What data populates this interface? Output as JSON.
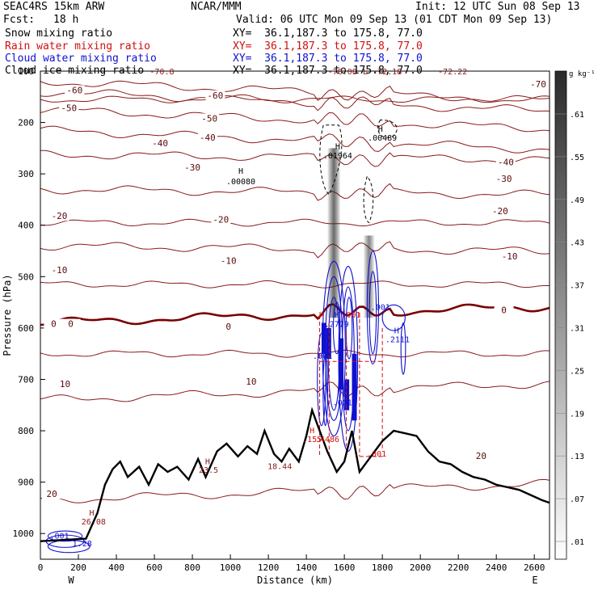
{
  "header": {
    "model": "SEAC4RS 15km ARW",
    "org": "NCAR/MMM",
    "init": "Init: 12 UTC Sun 08 Sep 13",
    "fcst_label": "Fcst:",
    "fcst_value": "18 h",
    "valid": "Valid: 06 UTC Mon 09 Sep 13 (01 CDT Mon 09 Sep 13)",
    "fields": [
      {
        "name": "Snow mixing ratio",
        "xy": "XY=  36.1,187.3 to 175.8, 77.0",
        "color": "#000000"
      },
      {
        "name": "Rain water mixing ratio",
        "xy": "XY=  36.1,187.3 to 175.8, 77.0",
        "color": "#d01010"
      },
      {
        "name": "Cloud water mixing ratio",
        "xy": "XY=  36.1,187.3 to 175.8, 77.0",
        "color": "#1010d0"
      },
      {
        "name": "Cloud ice mixing ratio",
        "xy": "XY=  36.1,187.3 to 175.8, 77.0",
        "color": "#000000"
      }
    ]
  },
  "chart_data": {
    "type": "cross-section contour",
    "xlabel": "Distance (km)",
    "ylabel": "Pressure (hPa)",
    "xlim": [
      0,
      2680
    ],
    "ylim": [
      1050,
      100
    ],
    "x_ticks": [
      "0",
      "200",
      "400",
      "600",
      "800",
      "1000",
      "1200",
      "1400",
      "1600",
      "1800",
      "2000",
      "2200",
      "2400",
      "2600"
    ],
    "y_ticks": [
      "100",
      "200",
      "300",
      "400",
      "500",
      "600",
      "700",
      "800",
      "900",
      "1000"
    ],
    "endpoint_labels": {
      "left": "W",
      "right": "E"
    },
    "colorbar": {
      "unit": "g kg⁻¹",
      "labels": [
        ".61",
        ".55",
        ".49",
        ".43",
        ".37",
        ".31",
        ".25",
        ".19",
        ".13",
        ".07",
        ".01"
      ]
    },
    "temperature_contours_C": {
      "color": "#8b1a1a",
      "zero_isotherm_color": "#7a0000",
      "levels": [
        -70,
        -60,
        -50,
        -40,
        -30,
        -20,
        -10,
        0,
        10,
        20
      ],
      "approx_pressure_hPa_at_x0": {
        "-70": 120,
        "-60": 140,
        "-50": 175,
        "-40": 215,
        "-30": 262,
        "-20": 330,
        "-10": 440,
        "0": 590,
        "10": 740,
        "20": 935
      },
      "labels": [
        {
          "text": "-70",
          "x": 2620,
          "p": 128
        },
        {
          "text": "-60",
          "x": 180,
          "p": 140
        },
        {
          "text": "-60",
          "x": 920,
          "p": 150
        },
        {
          "text": "-50",
          "x": 150,
          "p": 175
        },
        {
          "text": "-50",
          "x": 890,
          "p": 195
        },
        {
          "text": "-40",
          "x": 630,
          "p": 243
        },
        {
          "text": "-40",
          "x": 880,
          "p": 232
        },
        {
          "text": "-40",
          "x": 2450,
          "p": 280
        },
        {
          "text": "-30",
          "x": 800,
          "p": 290
        },
        {
          "text": "-30",
          "x": 2440,
          "p": 312
        },
        {
          "text": "-20",
          "x": 100,
          "p": 385
        },
        {
          "text": "-20",
          "x": 950,
          "p": 392
        },
        {
          "text": "-20",
          "x": 2420,
          "p": 375
        },
        {
          "text": "-10",
          "x": 100,
          "p": 490
        },
        {
          "text": "-10",
          "x": 990,
          "p": 472
        },
        {
          "text": "-10",
          "x": 2470,
          "p": 463
        },
        {
          "text": "0",
          "x": 70,
          "p": 595
        },
        {
          "text": "0",
          "x": 160,
          "p": 595
        },
        {
          "text": "0",
          "x": 990,
          "p": 600
        },
        {
          "text": "0",
          "x": 2440,
          "p": 568
        },
        {
          "text": "10",
          "x": 130,
          "p": 712
        },
        {
          "text": "10",
          "x": 1110,
          "p": 707
        },
        {
          "text": "20",
          "x": 60,
          "p": 926
        },
        {
          "text": "20",
          "x": 2320,
          "p": 852
        }
      ]
    },
    "extrema_labels": [
      {
        "text": "H",
        "x": 1055,
        "p": 300,
        "color": "#000000"
      },
      {
        "text": ".00080",
        "x": 1055,
        "p": 320,
        "color": "#000000"
      },
      {
        "text": "H",
        "x": 1565,
        "p": 252,
        "color": "#000000"
      },
      {
        "text": ".01964",
        "x": 1565,
        "p": 270,
        "color": "#000000"
      },
      {
        "text": "H",
        "x": 1790,
        "p": 218,
        "color": "#000000"
      },
      {
        "text": ".00489",
        "x": 1800,
        "p": 235,
        "color": "#000000"
      },
      {
        "text": "H",
        "x": 1480,
        "p": 580,
        "color": "#d01010"
      },
      {
        "text": "H",
        "x": 1560,
        "p": 580,
        "color": "#1010d0"
      },
      {
        "text": ".001",
        "x": 1635,
        "p": 580,
        "color": "#d01010"
      },
      {
        "text": ".2779",
        "x": 1560,
        "p": 598,
        "color": "#1010d0"
      },
      {
        "text": ".001",
        "x": 1790,
        "p": 565,
        "color": "#1010d0"
      },
      {
        "text": "H",
        "x": 1875,
        "p": 610,
        "color": "#1010d0"
      },
      {
        "text": ".2111",
        "x": 1880,
        "p": 628,
        "color": "#1010d0"
      },
      {
        "text": ".001",
        "x": 1485,
        "p": 660,
        "color": "#1010d0"
      },
      {
        "text": ".001",
        "x": 1590,
        "p": 750,
        "color": "#1010d0"
      },
      {
        "text": "H",
        "x": 1430,
        "p": 805,
        "color": "#d01010"
      },
      {
        "text": ".155",
        "x": 1430,
        "p": 822,
        "color": "#d01010"
      },
      {
        "text": ".4486",
        "x": 1510,
        "p": 822,
        "color": "#d01010"
      },
      {
        "text": "H",
        "x": 880,
        "p": 865,
        "color": "#8b1a1a"
      },
      {
        "text": "23.5",
        "x": 885,
        "p": 882,
        "color": "#8b1a1a"
      },
      {
        "text": "18.44",
        "x": 1260,
        "p": 875,
        "color": "#8b1a1a"
      },
      {
        "text": ".001",
        "x": 1770,
        "p": 850,
        "color": "#d01010"
      },
      {
        "text": "H",
        "x": 270,
        "p": 965,
        "color": "#8b1a1a"
      },
      {
        "text": "26.08",
        "x": 280,
        "p": 982,
        "color": "#8b1a1a"
      },
      {
        "text": ".001",
        "x": 100,
        "p": 1010,
        "color": "#1010d0"
      },
      {
        "text": "1.28",
        "x": 220,
        "p": 1025,
        "color": "#1010d0"
      }
    ],
    "top_truncated_labels": [
      {
        "text": "-70.8",
        "x": 640
      },
      {
        "text": "-70.08",
        "x": 1590
      },
      {
        "text": "L -72.18",
        "x": 1800
      },
      {
        "text": "-72.22",
        "x": 2170
      }
    ],
    "terrain_surface_hPa": [
      [
        0,
        1015
      ],
      [
        240,
        1010
      ],
      [
        300,
        960
      ],
      [
        340,
        905
      ],
      [
        380,
        875
      ],
      [
        420,
        860
      ],
      [
        460,
        890
      ],
      [
        520,
        870
      ],
      [
        570,
        905
      ],
      [
        620,
        865
      ],
      [
        670,
        880
      ],
      [
        720,
        870
      ],
      [
        780,
        895
      ],
      [
        830,
        855
      ],
      [
        870,
        890
      ],
      [
        930,
        840
      ],
      [
        980,
        825
      ],
      [
        1040,
        850
      ],
      [
        1090,
        830
      ],
      [
        1140,
        845
      ],
      [
        1180,
        800
      ],
      [
        1230,
        845
      ],
      [
        1270,
        860
      ],
      [
        1310,
        835
      ],
      [
        1360,
        860
      ],
      [
        1400,
        810
      ],
      [
        1430,
        760
      ],
      [
        1470,
        800
      ],
      [
        1510,
        840
      ],
      [
        1560,
        880
      ],
      [
        1600,
        860
      ],
      [
        1640,
        800
      ],
      [
        1680,
        880
      ],
      [
        1720,
        860
      ],
      [
        1760,
        840
      ],
      [
        1800,
        820
      ],
      [
        1860,
        800
      ],
      [
        1920,
        805
      ],
      [
        1980,
        810
      ],
      [
        2040,
        840
      ],
      [
        2100,
        860
      ],
      [
        2160,
        865
      ],
      [
        2220,
        880
      ],
      [
        2280,
        890
      ],
      [
        2340,
        895
      ],
      [
        2400,
        905
      ],
      [
        2460,
        910
      ],
      [
        2520,
        915
      ],
      [
        2580,
        925
      ],
      [
        2640,
        935
      ],
      [
        2680,
        940
      ]
    ]
  },
  "colors": {
    "temperature": "#8b1a1a",
    "rain": "#d01010",
    "cloud_water": "#1010d0",
    "snow_ice": "#000000",
    "terrain": "#000000"
  }
}
